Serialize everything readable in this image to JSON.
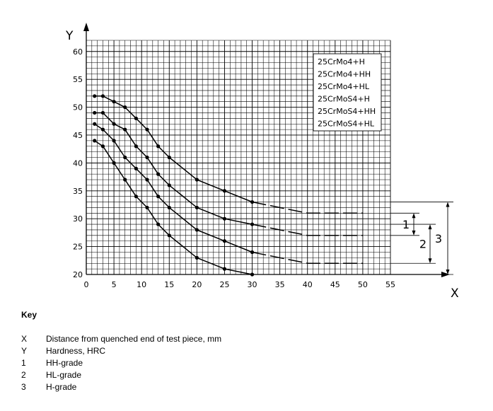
{
  "chart_data": {
    "type": "line",
    "x_axis": {
      "label": "X",
      "range": [
        0,
        55
      ],
      "ticks": [
        0,
        5,
        10,
        15,
        20,
        25,
        30,
        35,
        40,
        45,
        50,
        55
      ]
    },
    "y_axis": {
      "label": "Y",
      "range": [
        20,
        62
      ],
      "ticks": [
        20,
        25,
        30,
        35,
        40,
        45,
        50,
        55,
        60
      ]
    },
    "grid": true,
    "legend_position": "top-right",
    "legend": [
      "25CrMo4+H",
      "25CrMo4+HH",
      "25CrMo4+HL",
      "25CrMoS4+H",
      "25CrMoS4+HH",
      "25CrMoS4+HL"
    ],
    "series": [
      {
        "values": [
          [
            1.5,
            52
          ],
          [
            3,
            52
          ],
          [
            5,
            51
          ],
          [
            7,
            50
          ],
          [
            9,
            48
          ],
          [
            11,
            46
          ],
          [
            13,
            43
          ],
          [
            15,
            41
          ],
          [
            20,
            37
          ],
          [
            25,
            35
          ],
          [
            30,
            33
          ]
        ],
        "dashed_extension": [
          [
            30,
            33
          ],
          [
            40,
            31
          ],
          [
            50,
            31
          ]
        ]
      },
      {
        "values": [
          [
            1.5,
            49
          ],
          [
            3,
            49
          ],
          [
            5,
            47
          ],
          [
            7,
            46
          ],
          [
            9,
            43
          ],
          [
            11,
            41
          ],
          [
            13,
            38
          ],
          [
            15,
            36
          ],
          [
            20,
            32
          ],
          [
            25,
            30
          ],
          [
            30,
            29
          ]
        ],
        "dashed_extension": [
          [
            30,
            29
          ],
          [
            40,
            27
          ],
          [
            50,
            27
          ]
        ]
      },
      {
        "values": [
          [
            1.5,
            47
          ],
          [
            3,
            46
          ],
          [
            5,
            44
          ],
          [
            7,
            41
          ],
          [
            9,
            39
          ],
          [
            11,
            37
          ],
          [
            13,
            34
          ],
          [
            15,
            32
          ],
          [
            20,
            28
          ],
          [
            25,
            26
          ],
          [
            30,
            24
          ]
        ],
        "dashed_extension": [
          [
            30,
            24
          ],
          [
            40,
            22
          ],
          [
            50,
            22
          ]
        ]
      },
      {
        "values": [
          [
            1.5,
            44
          ],
          [
            3,
            43
          ],
          [
            5,
            40
          ],
          [
            7,
            37
          ],
          [
            9,
            34
          ],
          [
            11,
            32
          ],
          [
            13,
            29
          ],
          [
            15,
            27
          ],
          [
            20,
            23
          ],
          [
            25,
            21
          ],
          [
            30,
            20
          ]
        ]
      }
    ],
    "brackets": [
      {
        "label": "1",
        "from": 27,
        "to": 31
      },
      {
        "label": "2",
        "from": 22,
        "to": 29
      },
      {
        "label": "3",
        "from": 20,
        "to": 33
      }
    ]
  },
  "key": {
    "title": "Key",
    "items": [
      {
        "symbol": "X",
        "text": "Distance from quenched end of test piece, mm"
      },
      {
        "symbol": "Y",
        "text": "Hardness, HRC"
      },
      {
        "symbol": "1",
        "text": "HH-grade"
      },
      {
        "symbol": "2",
        "text": "HL-grade"
      },
      {
        "symbol": "3",
        "text": "H-grade"
      }
    ]
  }
}
